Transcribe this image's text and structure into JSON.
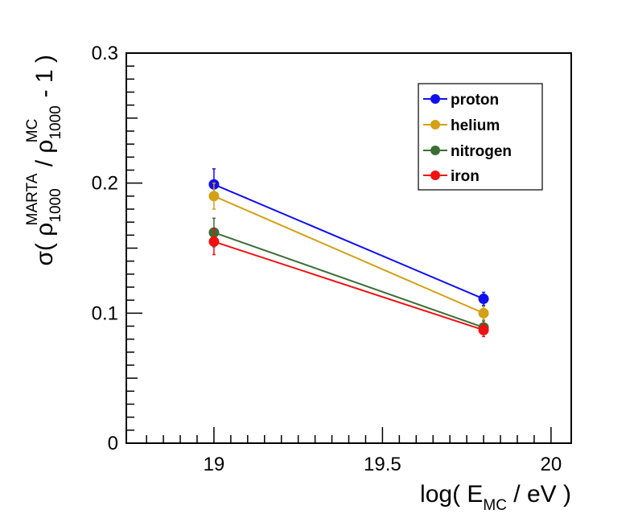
{
  "chart_data": {
    "type": "scatter",
    "title": "",
    "xlabel": {
      "prefix": "log( E",
      "sub": "MC",
      "suffix": " / eV )"
    },
    "ylabel": {
      "prefix": "σ( ρ",
      "sub1": "1000",
      "sup1": "MARTA",
      "middle": " / ρ",
      "sub2": "1000",
      "sup2": "MC",
      "suffix": " - 1 )"
    },
    "xlim": [
      18.74,
      20.06
    ],
    "ylim": [
      0,
      0.3
    ],
    "xticks": [
      {
        "value": 19,
        "label": "19"
      },
      {
        "value": 19.5,
        "label": "19.5"
      },
      {
        "value": 20,
        "label": "20"
      }
    ],
    "yticks": [
      {
        "value": 0,
        "label": "0"
      },
      {
        "value": 0.1,
        "label": "0.1"
      },
      {
        "value": 0.2,
        "label": "0.2"
      },
      {
        "value": 0.3,
        "label": "0.3"
      }
    ],
    "legend_position": "top-right",
    "series": [
      {
        "name": "proton",
        "color": "#1010ee",
        "x": [
          19.0,
          19.8
        ],
        "y": [
          0.199,
          0.111
        ],
        "yerr": [
          0.012,
          0.005
        ]
      },
      {
        "name": "helium",
        "color": "#d4a017",
        "x": [
          19.0,
          19.8
        ],
        "y": [
          0.19,
          0.1
        ],
        "yerr": [
          0.01,
          0.005
        ]
      },
      {
        "name": "nitrogen",
        "color": "#3b6e35",
        "x": [
          19.0,
          19.8
        ],
        "y": [
          0.162,
          0.089
        ],
        "yerr": [
          0.011,
          0.005
        ]
      },
      {
        "name": "iron",
        "color": "#ee1111",
        "x": [
          19.0,
          19.8
        ],
        "y": [
          0.155,
          0.087
        ],
        "yerr": [
          0.01,
          0.005
        ]
      }
    ]
  }
}
